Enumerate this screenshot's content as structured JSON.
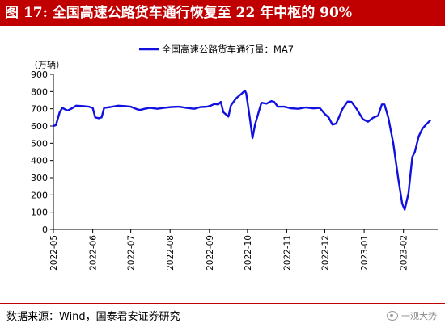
{
  "header": {
    "title": "图 17: 全国高速公路货车通行恢复至 22 年中枢的 90%"
  },
  "footer": {
    "source": "数据来源：Wind，国泰君安证券研究",
    "watermark": "一观大势"
  },
  "colors": {
    "title_bg": "#c00000",
    "line": "#1010e0",
    "axis": "#000000",
    "footer_rule": "#c00000"
  },
  "chart_data": {
    "type": "line",
    "title": "",
    "unit_label": "（万辆）",
    "xlabel": "",
    "ylabel": "",
    "ylim": [
      0,
      900
    ],
    "yticks": [
      "0",
      "100",
      "200",
      "300",
      "400",
      "500",
      "600",
      "700",
      "800",
      "900"
    ],
    "grid": false,
    "legend_position": "top-center",
    "x_range": [
      "2022-05-01",
      "2023-02-28"
    ],
    "xticks": [
      "2022-05",
      "2022-06",
      "2022-07",
      "2022-08",
      "2022-09",
      "2022-10",
      "2022-11",
      "2022-12",
      "2023-01",
      "2023-02"
    ],
    "series": [
      {
        "name": "全国高速公路货车通行量：MA7",
        "color": "#1010e0",
        "points": [
          [
            "2022-05-01",
            600
          ],
          [
            "2022-05-03",
            605
          ],
          [
            "2022-05-06",
            680
          ],
          [
            "2022-05-08",
            705
          ],
          [
            "2022-05-12",
            690
          ],
          [
            "2022-05-15",
            700
          ],
          [
            "2022-05-19",
            718
          ],
          [
            "2022-05-24",
            716
          ],
          [
            "2022-05-29",
            712
          ],
          [
            "2022-06-01",
            705
          ],
          [
            "2022-06-03",
            650
          ],
          [
            "2022-06-06",
            645
          ],
          [
            "2022-06-08",
            650
          ],
          [
            "2022-06-10",
            705
          ],
          [
            "2022-06-15",
            710
          ],
          [
            "2022-06-21",
            718
          ],
          [
            "2022-06-27",
            715
          ],
          [
            "2022-07-01",
            712
          ],
          [
            "2022-07-05",
            700
          ],
          [
            "2022-07-08",
            693
          ],
          [
            "2022-07-12",
            700
          ],
          [
            "2022-07-16",
            706
          ],
          [
            "2022-07-22",
            700
          ],
          [
            "2022-07-27",
            705
          ],
          [
            "2022-08-02",
            710
          ],
          [
            "2022-08-08",
            712
          ],
          [
            "2022-08-14",
            705
          ],
          [
            "2022-08-20",
            700
          ],
          [
            "2022-08-25",
            710
          ],
          [
            "2022-08-30",
            712
          ],
          [
            "2022-09-02",
            718
          ],
          [
            "2022-09-05",
            728
          ],
          [
            "2022-09-08",
            725
          ],
          [
            "2022-09-10",
            740
          ],
          [
            "2022-09-12",
            680
          ],
          [
            "2022-09-16",
            655
          ],
          [
            "2022-09-18",
            720
          ],
          [
            "2022-09-22",
            760
          ],
          [
            "2022-09-26",
            785
          ],
          [
            "2022-09-29",
            805
          ],
          [
            "2022-09-30",
            790
          ],
          [
            "2022-10-03",
            640
          ],
          [
            "2022-10-05",
            530
          ],
          [
            "2022-10-07",
            610
          ],
          [
            "2022-10-12",
            735
          ],
          [
            "2022-10-16",
            730
          ],
          [
            "2022-10-20",
            745
          ],
          [
            "2022-10-22",
            740
          ],
          [
            "2022-10-25",
            712
          ],
          [
            "2022-10-30",
            712
          ],
          [
            "2022-11-04",
            703
          ],
          [
            "2022-11-10",
            700
          ],
          [
            "2022-11-16",
            708
          ],
          [
            "2022-11-22",
            702
          ],
          [
            "2022-11-27",
            705
          ],
          [
            "2022-12-01",
            670
          ],
          [
            "2022-12-04",
            650
          ],
          [
            "2022-12-07",
            608
          ],
          [
            "2022-12-10",
            615
          ],
          [
            "2022-12-15",
            700
          ],
          [
            "2022-12-19",
            742
          ],
          [
            "2022-12-22",
            740
          ],
          [
            "2022-12-26",
            700
          ],
          [
            "2022-12-31",
            640
          ],
          [
            "2023-01-04",
            625
          ],
          [
            "2023-01-08",
            648
          ],
          [
            "2023-01-12",
            660
          ],
          [
            "2023-01-15",
            725
          ],
          [
            "2023-01-17",
            725
          ],
          [
            "2023-01-20",
            650
          ],
          [
            "2023-01-24",
            500
          ],
          [
            "2023-01-28",
            290
          ],
          [
            "2023-01-31",
            150
          ],
          [
            "2023-02-02",
            115
          ],
          [
            "2023-02-05",
            210
          ],
          [
            "2023-02-08",
            420
          ],
          [
            "2023-02-10",
            450
          ],
          [
            "2023-02-13",
            540
          ],
          [
            "2023-02-16",
            585
          ],
          [
            "2023-02-19",
            610
          ],
          [
            "2023-02-22",
            632
          ]
        ]
      }
    ]
  }
}
